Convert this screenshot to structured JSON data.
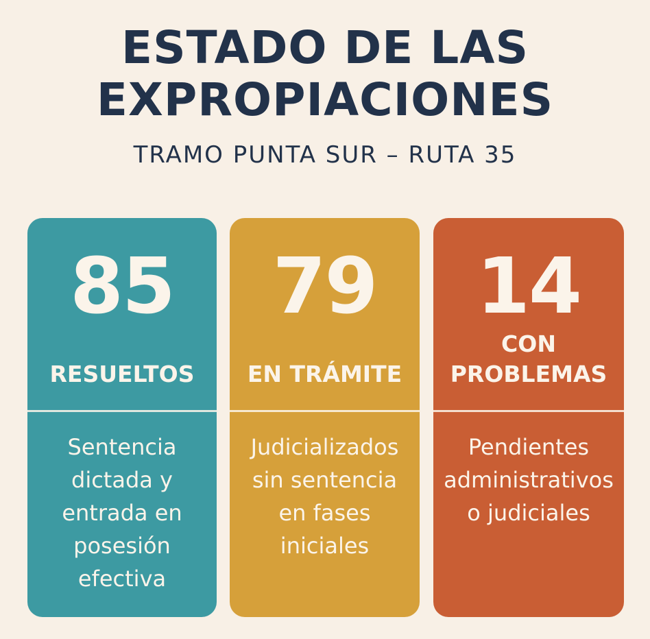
{
  "header": {
    "title_line1": "ESTADO DE LAS",
    "title_line2": "EXPROPIACIONES",
    "subtitle": "TRAMO PUNTA SUR – RUTA 35"
  },
  "cards": [
    {
      "number": "85",
      "label": "RESUELTOS",
      "description": "Sentencia dictada y entrada en posesión efectiva",
      "color": "#3d9aa2"
    },
    {
      "number": "79",
      "label": "EN TRÁMITE",
      "description": "Judicializados sin sentencia en fases iniciales",
      "color": "#d6a03a"
    },
    {
      "number": "14",
      "label": "CON PROBLEMAS",
      "description": "Pendientes administrativos o judiciales",
      "color": "#c95e34"
    }
  ],
  "colors": {
    "background": "#f8f0e6",
    "heading": "#22324a",
    "card_text": "#fbf4ea"
  }
}
